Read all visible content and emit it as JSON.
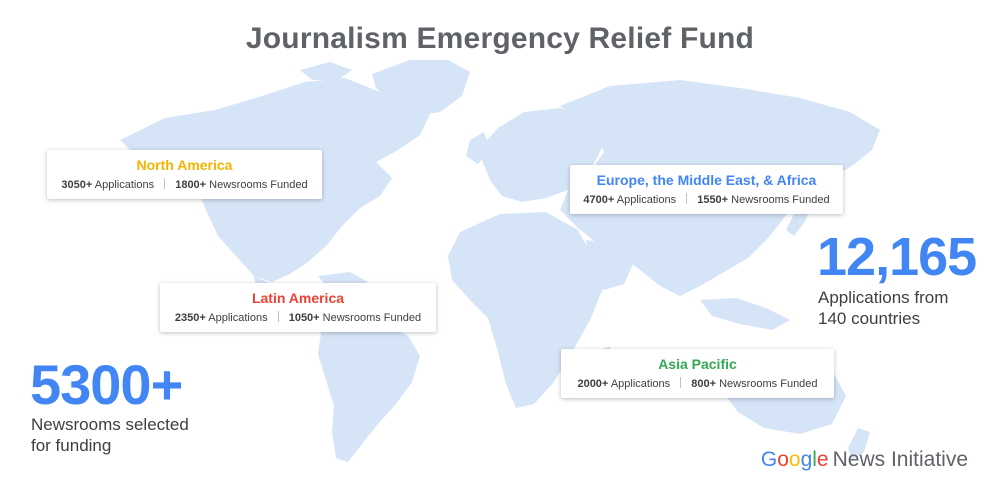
{
  "title": "Journalism Emergency Relief Fund",
  "regions": [
    {
      "name": "North America",
      "color": "#f4b400",
      "applications": "3050+",
      "applications_label": "Applications",
      "funded": "1800+",
      "funded_label": "Newsrooms Funded"
    },
    {
      "name": "Europe, the Middle East, & Africa",
      "color": "#4285f4",
      "applications": "4700+",
      "applications_label": "Applications",
      "funded": "1550+",
      "funded_label": "Newsrooms Funded"
    },
    {
      "name": "Latin America",
      "color": "#ea4335",
      "applications": "2350+",
      "applications_label": "Applications",
      "funded": "1050+",
      "funded_label": "Newsrooms Funded"
    },
    {
      "name": "Asia Pacific",
      "color": "#34a853",
      "applications": "2000+",
      "applications_label": "Applications",
      "funded": "800+",
      "funded_label": "Newsrooms Funded"
    }
  ],
  "total_applications": {
    "value": "12,165",
    "caption_line1": "Applications from",
    "caption_line2": "140 countries"
  },
  "newsrooms_selected": {
    "value": "5300+",
    "caption_line1": "Newsrooms selected",
    "caption_line2": "for funding"
  },
  "brand": {
    "google_letters": [
      "G",
      "o",
      "o",
      "g",
      "l",
      "e"
    ],
    "google_colors": [
      "#4285f4",
      "#ea4335",
      "#fbbc05",
      "#4285f4",
      "#34a853",
      "#ea4335"
    ],
    "suffix": "News Initiative"
  },
  "colors": {
    "map_fill": "#d6e4f7",
    "title": "#5f6368",
    "accent": "#4285f4"
  }
}
